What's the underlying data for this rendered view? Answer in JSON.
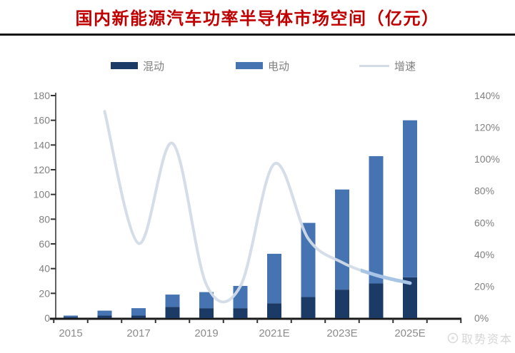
{
  "title": "国内新能源汽车功率半导体市场空间（亿元）",
  "title_color": "#c00000",
  "legend": {
    "items": [
      {
        "label": "混动",
        "type": "bar",
        "color": "#1b3a66"
      },
      {
        "label": "电动",
        "type": "bar",
        "color": "#4674b2"
      },
      {
        "label": "增速",
        "type": "line",
        "color": "#d3dbe7"
      }
    ]
  },
  "watermark": {
    "text": "取势资本",
    "logo": "circle-logo",
    "color": "#d6d6d6"
  },
  "chart_data": {
    "type": "bar",
    "subtype": "stacked-bar-with-line",
    "categories": [
      "2015",
      "2016",
      "2017",
      "2018",
      "2019",
      "2020",
      "2021E",
      "2022E",
      "2023E",
      "2024E",
      "2025E"
    ],
    "x_axis_shown_labels": [
      "2015",
      "2017",
      "2019",
      "2021E",
      "2023E",
      "2025E"
    ],
    "x_axis_shown_label_indices": [
      0,
      2,
      4,
      6,
      8,
      10
    ],
    "series": [
      {
        "name": "混动",
        "type": "bar",
        "stacked": true,
        "color": "#1b3a66",
        "values": [
          1,
          2,
          2,
          9,
          8,
          8,
          12,
          17,
          23,
          28,
          33
        ]
      },
      {
        "name": "电动",
        "type": "bar",
        "stacked": true,
        "color": "#4674b2",
        "values": [
          1,
          4,
          6,
          10,
          13,
          18,
          40,
          60,
          81,
          103,
          127
        ]
      },
      {
        "name": "增速",
        "type": "line",
        "axis": "right",
        "color": "#d3dbe7",
        "highlight_color": "#a7c3e6",
        "unit": "%",
        "values": [
          null,
          130,
          47,
          110,
          21,
          20,
          97,
          50,
          35,
          27,
          22
        ]
      }
    ],
    "stack_totals": [
      2,
      6,
      8,
      19,
      21,
      26,
      52,
      77,
      104,
      131,
      160
    ],
    "title": "国内新能源汽车功率半导体市场空间（亿元）",
    "xlabel": "",
    "ylabel_left": "",
    "ylabel_right": "",
    "left_axis": {
      "min": 0,
      "max": 180,
      "step": 20
    },
    "right_axis": {
      "min": 0,
      "max": 140,
      "step": 20,
      "suffix": "%"
    },
    "grid": false,
    "legend_position": "top",
    "axis_label_color": "#808080",
    "axis_line_color": "#1a1a1a"
  }
}
